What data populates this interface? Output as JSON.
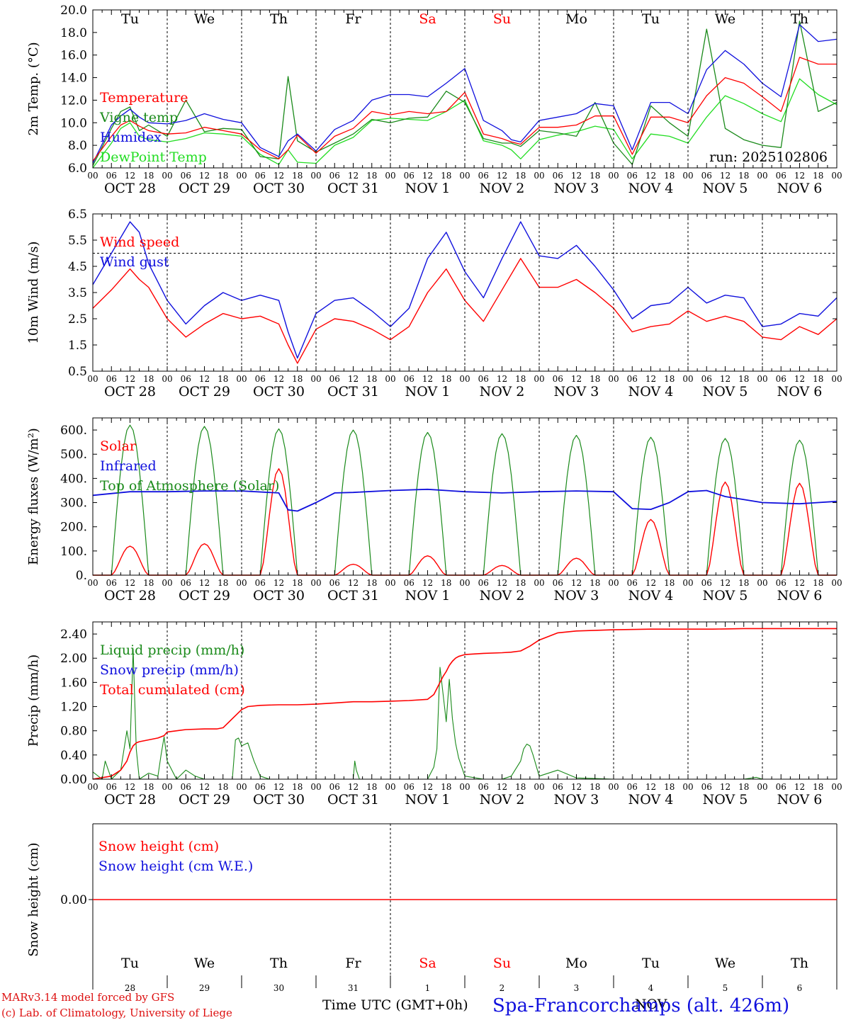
{
  "colors": {
    "red": "#ff0000",
    "darkred": "#dd1111",
    "green": "#1a8a1a",
    "lightgreen": "#22dd22",
    "blue": "#1010dd",
    "black": "#000000",
    "weekend": "#ff0000"
  },
  "days": {
    "top": [
      "Tu",
      "We",
      "Th",
      "Fr",
      "Sa",
      "Su",
      "Mo",
      "Tu",
      "We",
      "Th"
    ],
    "weekend_index": [
      4,
      5
    ],
    "dates": [
      "OCT  28",
      "OCT  29",
      "OCT  30",
      "OCT  31",
      "NOV   1",
      "NOV   2",
      "NOV   3",
      "NOV   4",
      "NOV   5",
      "NOV   6"
    ],
    "hours": [
      "00",
      "06",
      "12",
      "18"
    ],
    "final_hour": "00"
  },
  "footer": {
    "credit1": "MARv3.14 model forced by GFS",
    "credit2": "(c) Lab. of Climatology, University of Liege",
    "time_label": "Time UTC (GMT+0h)",
    "station": "Spa-Francorchamps (alt. 426m)",
    "bottom_dates": [
      "28",
      "29",
      "30",
      "31",
      "1",
      "2",
      "3",
      "4",
      "5",
      "6"
    ],
    "month_label": "NOV"
  },
  "chart_data": [
    {
      "type": "line",
      "ylabel": "2m Temp. (°C)",
      "ylim": [
        6.0,
        20.0
      ],
      "yticks": [
        "6.0",
        "8.0",
        "10.0",
        "12.0",
        "14.0",
        "16.0",
        "18.0",
        "20.0"
      ],
      "annotation": "run: 2025102806",
      "x_hours": [
        0,
        6,
        9,
        12,
        15,
        18,
        24,
        30,
        36,
        42,
        48,
        54,
        60,
        63,
        66,
        72,
        78,
        84,
        90,
        96,
        102,
        108,
        114,
        120,
        126,
        132,
        135,
        138,
        144,
        150,
        156,
        162,
        168,
        174,
        180,
        186,
        192,
        198,
        204,
        210,
        216,
        222,
        228,
        234,
        240
      ],
      "series": [
        {
          "name": "Temperature",
          "color": "red",
          "values": [
            6.6,
            8.8,
            9.8,
            10.2,
            9.7,
            9.3,
            9.0,
            9.1,
            9.6,
            9.3,
            9.0,
            7.6,
            6.8,
            7.6,
            8.9,
            7.3,
            8.8,
            9.5,
            11.0,
            10.7,
            11.0,
            10.8,
            11.0,
            12.7,
            9.0,
            8.6,
            8.3,
            8.1,
            9.6,
            9.6,
            9.8,
            10.6,
            10.6,
            7.2,
            10.5,
            10.5,
            10.0,
            12.4,
            14.0,
            13.5,
            12.3,
            11.0,
            15.8,
            15.2,
            15.2
          ]
        },
        {
          "name": "Vigne temp",
          "color": "green",
          "values": [
            6.2,
            9.5,
            11.0,
            11.4,
            9.3,
            9.8,
            8.8,
            12.0,
            9.2,
            9.5,
            9.4,
            7.0,
            6.8,
            14.1,
            8.4,
            7.4,
            8.2,
            9.0,
            10.3,
            10.0,
            10.4,
            10.5,
            12.8,
            11.8,
            8.6,
            8.2,
            8.2,
            7.9,
            9.3,
            9.1,
            8.8,
            11.8,
            8.2,
            6.3,
            11.5,
            10.0,
            8.8,
            18.3,
            9.5,
            8.5,
            8.0,
            7.8,
            19.0,
            11.0,
            11.8
          ]
        },
        {
          "name": "Humidex",
          "color": "blue",
          "values": [
            6.4,
            9.8,
            10.6,
            11.2,
            10.5,
            10.0,
            9.9,
            10.2,
            10.8,
            10.3,
            10.0,
            7.8,
            7.0,
            8.4,
            9.0,
            7.5,
            9.4,
            10.2,
            12.0,
            12.5,
            12.5,
            12.3,
            13.5,
            14.8,
            10.2,
            9.3,
            8.5,
            8.3,
            10.2,
            10.5,
            10.8,
            11.7,
            11.5,
            7.6,
            11.8,
            11.8,
            10.8,
            14.7,
            16.4,
            15.2,
            13.5,
            12.3,
            18.7,
            17.2,
            17.4
          ]
        },
        {
          "name": "DewPoint Temp",
          "color": "lightgreen",
          "values": [
            6.0,
            8.2,
            9.5,
            10.0,
            8.8,
            8.5,
            8.3,
            8.6,
            9.1,
            9.0,
            8.8,
            7.2,
            6.3,
            7.6,
            6.5,
            6.4,
            8.0,
            8.7,
            10.2,
            10.4,
            10.3,
            10.2,
            11.0,
            12.0,
            8.4,
            8.0,
            7.6,
            6.8,
            8.5,
            8.9,
            9.2,
            9.7,
            9.4,
            6.8,
            9.0,
            8.8,
            8.2,
            10.5,
            12.4,
            11.7,
            10.8,
            10.1,
            13.9,
            12.5,
            11.6
          ]
        }
      ]
    },
    {
      "type": "line",
      "ylabel": "10m Wind (m/s)",
      "ylim": [
        0.5,
        6.5
      ],
      "yticks": [
        "0.5",
        "1.5",
        "2.5",
        "3.5",
        "4.5",
        "5.5",
        "6.5"
      ],
      "reference_y": 5.0,
      "x_hours": [
        0,
        6,
        12,
        15,
        18,
        24,
        30,
        36,
        42,
        48,
        54,
        60,
        63,
        66,
        72,
        78,
        84,
        90,
        96,
        102,
        108,
        114,
        120,
        126,
        132,
        138,
        144,
        150,
        156,
        162,
        168,
        174,
        180,
        186,
        192,
        198,
        204,
        210,
        216,
        222,
        228,
        234,
        240
      ],
      "series": [
        {
          "name": "Wind speed",
          "color": "red",
          "values": [
            2.9,
            3.6,
            4.4,
            4.0,
            3.7,
            2.5,
            1.8,
            2.3,
            2.7,
            2.5,
            2.6,
            2.3,
            1.5,
            0.8,
            2.1,
            2.5,
            2.4,
            2.1,
            1.7,
            2.2,
            3.5,
            4.4,
            3.2,
            2.4,
            3.6,
            4.8,
            3.7,
            3.7,
            4.0,
            3.5,
            2.9,
            2.0,
            2.2,
            2.3,
            2.8,
            2.4,
            2.6,
            2.4,
            1.8,
            1.7,
            2.2,
            1.9,
            2.5
          ]
        },
        {
          "name": "Wind gust",
          "color": "blue",
          "values": [
            3.8,
            5.0,
            6.2,
            5.8,
            4.6,
            3.2,
            2.3,
            3.0,
            3.5,
            3.2,
            3.4,
            3.2,
            2.0,
            1.0,
            2.7,
            3.2,
            3.3,
            2.8,
            2.2,
            2.9,
            4.8,
            5.8,
            4.3,
            3.3,
            4.8,
            6.2,
            4.9,
            4.8,
            5.3,
            4.5,
            3.6,
            2.5,
            3.0,
            3.1,
            3.7,
            3.1,
            3.4,
            3.3,
            2.2,
            2.3,
            2.7,
            2.6,
            3.3
          ]
        }
      ]
    },
    {
      "type": "line",
      "ylabel": "Energy fluxes (W/m²)",
      "ylim": [
        0,
        650
      ],
      "yticks": [
        "0.",
        "100.",
        "200.",
        "300.",
        "400.",
        "500.",
        "600."
      ],
      "daily_peaks": {
        "top_of_atmosphere": [
          620,
          615,
          605,
          600,
          590,
          585,
          578,
          570,
          565,
          558
        ],
        "solar": [
          120,
          130,
          440,
          45,
          80,
          40,
          70,
          230,
          385,
          380
        ]
      },
      "series": [
        {
          "name": "Solar",
          "color": "red"
        },
        {
          "name": "Infrared",
          "color": "blue",
          "x_hours": [
            0,
            12,
            24,
            36,
            48,
            60,
            63,
            66,
            72,
            78,
            84,
            96,
            108,
            120,
            132,
            144,
            156,
            168,
            174,
            180,
            186,
            192,
            198,
            204,
            216,
            228,
            240
          ],
          "values": [
            330,
            345,
            345,
            348,
            348,
            340,
            270,
            265,
            300,
            340,
            342,
            350,
            355,
            345,
            340,
            345,
            348,
            345,
            275,
            272,
            300,
            345,
            350,
            325,
            300,
            295,
            305
          ]
        },
        {
          "name": "Top of Atmosphere (Solar)",
          "color": "green"
        }
      ]
    },
    {
      "type": "line",
      "ylabel": "Precip (mm/h)",
      "ylim": [
        0.0,
        2.6
      ],
      "yticks": [
        "0.00",
        "0.40",
        "0.80",
        "1.20",
        "1.60",
        "2.00",
        "2.40"
      ],
      "series": [
        {
          "name": "Liquid precip (mm/h)",
          "color": "green",
          "x_hours": [
            0,
            3,
            4,
            6,
            9,
            11,
            12,
            13,
            14,
            15,
            18,
            21,
            22,
            23,
            24,
            27,
            30,
            33,
            36,
            42,
            45,
            46,
            47,
            48,
            50,
            52,
            54,
            57,
            60,
            66,
            72,
            78,
            84,
            84.5,
            85,
            86,
            90,
            96,
            102,
            108,
            110,
            111,
            112,
            113,
            114,
            115,
            116,
            117,
            118,
            120,
            126,
            132,
            135,
            138,
            139,
            140,
            141,
            142,
            144,
            150,
            156,
            162,
            168,
            174,
            180,
            192,
            210,
            214,
            216,
            220,
            240
          ],
          "values": [
            0.12,
            0.0,
            0.3,
            0.0,
            0.15,
            0.8,
            0.5,
            2.15,
            0.5,
            0.0,
            0.1,
            0.05,
            0.4,
            0.7,
            0.3,
            0.0,
            0.15,
            0.05,
            0.0,
            0.0,
            0.0,
            0.65,
            0.68,
            0.55,
            0.6,
            0.3,
            0.05,
            0.0,
            0.0,
            0.0,
            0.0,
            0.0,
            0.0,
            0.3,
            0.15,
            0.0,
            0.0,
            0.0,
            0.0,
            0.0,
            0.2,
            0.5,
            1.85,
            1.4,
            0.95,
            1.65,
            1.0,
            0.6,
            0.35,
            0.05,
            0.0,
            0.0,
            0.05,
            0.3,
            0.5,
            0.58,
            0.55,
            0.4,
            0.05,
            0.15,
            0.02,
            0.01,
            0.0,
            0.0,
            0.0,
            0.0,
            0.0,
            0.03,
            0.0,
            0.0,
            0.0
          ]
        },
        {
          "name": "Snow precip (mm/h)",
          "color": "blue"
        },
        {
          "name": "Total cumulated (cm)",
          "color": "red",
          "x_hours": [
            0,
            6,
            9,
            11,
            12,
            13,
            14,
            15,
            18,
            21,
            23,
            24,
            30,
            36,
            40,
            42,
            44,
            46,
            48,
            50,
            54,
            60,
            66,
            72,
            78,
            84,
            90,
            96,
            102,
            108,
            110,
            112,
            113,
            114,
            115,
            116,
            117,
            118,
            120,
            126,
            132,
            135,
            138,
            141,
            144,
            150,
            156,
            168,
            180,
            192,
            200,
            210,
            216,
            225,
            240
          ],
          "values": [
            0.0,
            0.05,
            0.15,
            0.3,
            0.45,
            0.55,
            0.6,
            0.62,
            0.65,
            0.68,
            0.72,
            0.78,
            0.82,
            0.83,
            0.83,
            0.85,
            0.95,
            1.05,
            1.15,
            1.2,
            1.22,
            1.23,
            1.23,
            1.24,
            1.26,
            1.28,
            1.28,
            1.29,
            1.3,
            1.32,
            1.4,
            1.6,
            1.7,
            1.78,
            1.88,
            1.95,
            2.0,
            2.03,
            2.06,
            2.08,
            2.09,
            2.1,
            2.12,
            2.2,
            2.3,
            2.42,
            2.45,
            2.47,
            2.48,
            2.48,
            2.48,
            2.49,
            2.49,
            2.49,
            2.49
          ]
        }
      ]
    },
    {
      "type": "line",
      "ylabel": "Snow height (cm)",
      "ytick": "0.00",
      "series": [
        {
          "name": "Snow height (cm)",
          "color": "red",
          "values": [
            0.0
          ]
        },
        {
          "name": "Snow height (cm W.E.)",
          "color": "blue"
        }
      ]
    }
  ]
}
